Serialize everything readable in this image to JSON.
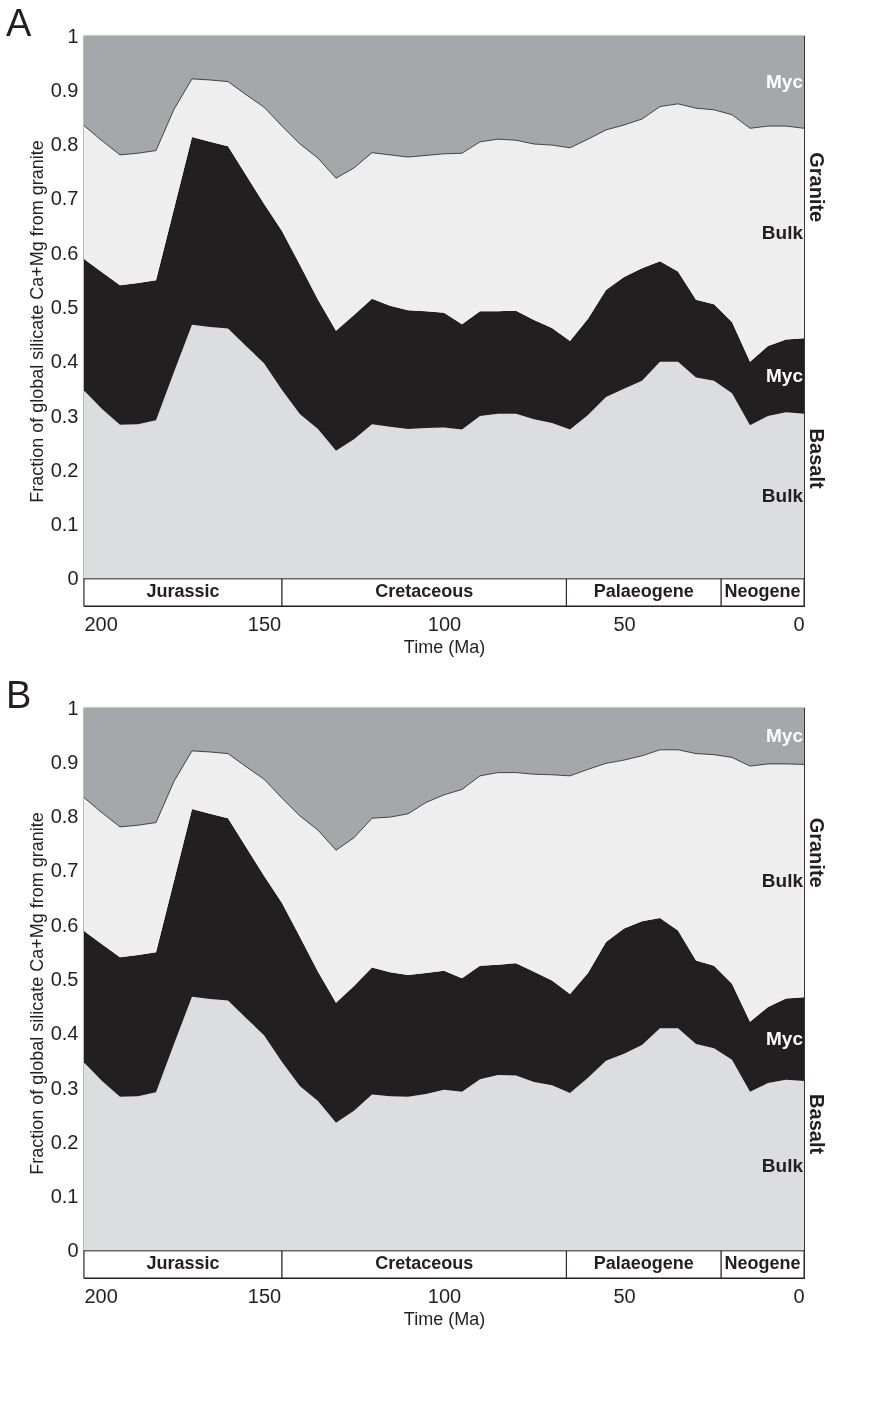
{
  "chart_data": [
    {
      "type": "area",
      "stacked": true,
      "title": "A",
      "xlabel": "Time (Ma)",
      "ylabel": "Fraction of global silicate Ca+Mg from granite",
      "x": [
        200,
        195,
        190,
        185,
        180,
        175,
        170,
        165,
        160,
        155,
        150,
        145,
        140,
        135,
        130,
        125,
        120,
        115,
        110,
        105,
        100,
        95,
        90,
        85,
        80,
        75,
        70,
        65,
        60,
        55,
        50,
        45,
        40,
        35,
        30,
        25,
        20,
        15,
        10,
        5,
        0
      ],
      "xlim": [
        200,
        0
      ],
      "xticks": [
        200,
        150,
        100,
        50,
        0
      ],
      "ylim": [
        -0.05,
        1
      ],
      "yticks": [
        0,
        0.1,
        0.2,
        0.3,
        0.4,
        0.5,
        0.6,
        0.7,
        0.8,
        0.9,
        1
      ],
      "series": [
        {
          "name": "Bulk",
          "color": "#dcdddf",
          "values": [
            0.347,
            0.313,
            0.284,
            0.285,
            0.292,
            0.381,
            0.468,
            0.464,
            0.461,
            0.429,
            0.397,
            0.348,
            0.303,
            0.276,
            0.236,
            0.257,
            0.285,
            0.28,
            0.276,
            0.278,
            0.279,
            0.275,
            0.3,
            0.304,
            0.304,
            0.294,
            0.287,
            0.275,
            0.302,
            0.335,
            0.35,
            0.365,
            0.4,
            0.4,
            0.371,
            0.365,
            0.342,
            0.283,
            0.3,
            0.307,
            0.304
          ]
        },
        {
          "name": "Myc",
          "color": "#231f20",
          "values": [
            0.242,
            0.252,
            0.257,
            0.26,
            0.258,
            0.301,
            0.346,
            0.341,
            0.336,
            0.315,
            0.294,
            0.293,
            0.275,
            0.238,
            0.221,
            0.229,
            0.231,
            0.223,
            0.219,
            0.215,
            0.211,
            0.194,
            0.193,
            0.189,
            0.19,
            0.183,
            0.175,
            0.163,
            0.177,
            0.197,
            0.206,
            0.207,
            0.185,
            0.166,
            0.143,
            0.141,
            0.131,
            0.117,
            0.129,
            0.134,
            0.139
          ]
        },
        {
          "name": "Bulk",
          "color": "#eeeeee",
          "values": [
            0.246,
            0.242,
            0.24,
            0.239,
            0.239,
            0.183,
            0.107,
            0.114,
            0.119,
            0.148,
            0.178,
            0.193,
            0.223,
            0.261,
            0.281,
            0.271,
            0.269,
            0.278,
            0.282,
            0.287,
            0.293,
            0.315,
            0.312,
            0.317,
            0.314,
            0.324,
            0.337,
            0.356,
            0.331,
            0.295,
            0.28,
            0.275,
            0.285,
            0.309,
            0.353,
            0.358,
            0.382,
            0.43,
            0.405,
            0.393,
            0.387
          ]
        },
        {
          "name": "Myc",
          "color": "#a6a7ab",
          "values": [
            0.165,
            0.193,
            0.219,
            0.216,
            0.211,
            0.135,
            0.079,
            0.081,
            0.084,
            0.108,
            0.131,
            0.166,
            0.199,
            0.225,
            0.262,
            0.243,
            0.215,
            0.219,
            0.223,
            0.22,
            0.217,
            0.216,
            0.195,
            0.19,
            0.192,
            0.199,
            0.201,
            0.206,
            0.19,
            0.173,
            0.164,
            0.153,
            0.13,
            0.125,
            0.133,
            0.136,
            0.145,
            0.17,
            0.166,
            0.166,
            0.17
          ]
        }
      ],
      "bands": [
        {
          "axis": "x",
          "from": 200,
          "to": 145,
          "label": "Jurassic",
          "color": "#ffffff"
        },
        {
          "axis": "x",
          "from": 145,
          "to": 66,
          "label": "Cretaceous",
          "color": "#ffffff"
        },
        {
          "axis": "x",
          "from": 66,
          "to": 23,
          "label": "Palaeogene",
          "color": "#ffffff"
        },
        {
          "axis": "x",
          "from": 23,
          "to": 0,
          "label": "Neogene",
          "color": "#ffffff"
        }
      ],
      "annotations": [
        "Granite",
        "Basalt"
      ]
    },
    {
      "type": "area",
      "stacked": true,
      "title": "B",
      "xlabel": "Time (Ma)",
      "ylabel": "Fraction of global silicate Ca+Mg from granite",
      "x": [
        200,
        195,
        190,
        185,
        180,
        175,
        170,
        165,
        160,
        155,
        150,
        145,
        140,
        135,
        130,
        125,
        120,
        115,
        110,
        105,
        100,
        95,
        90,
        85,
        80,
        75,
        70,
        65,
        60,
        55,
        50,
        45,
        40,
        35,
        30,
        25,
        20,
        15,
        10,
        5,
        0
      ],
      "xlim": [
        200,
        0
      ],
      "xticks": [
        200,
        150,
        100,
        50,
        0
      ],
      "ylim": [
        -0.05,
        1
      ],
      "yticks": [
        0,
        0.1,
        0.2,
        0.3,
        0.4,
        0.5,
        0.6,
        0.7,
        0.8,
        0.9,
        1
      ],
      "series": [
        {
          "name": "Bulk",
          "color": "#dcdddf",
          "values": [
            0.347,
            0.313,
            0.284,
            0.285,
            0.292,
            0.381,
            0.468,
            0.464,
            0.461,
            0.429,
            0.397,
            0.348,
            0.303,
            0.276,
            0.236,
            0.258,
            0.288,
            0.285,
            0.284,
            0.289,
            0.297,
            0.293,
            0.316,
            0.324,
            0.323,
            0.311,
            0.305,
            0.291,
            0.319,
            0.35,
            0.363,
            0.379,
            0.41,
            0.41,
            0.381,
            0.373,
            0.352,
            0.293,
            0.309,
            0.315,
            0.313
          ]
        },
        {
          "name": "Myc",
          "color": "#231f20",
          "values": [
            0.242,
            0.252,
            0.257,
            0.26,
            0.258,
            0.301,
            0.346,
            0.341,
            0.336,
            0.315,
            0.294,
            0.293,
            0.275,
            0.238,
            0.221,
            0.23,
            0.234,
            0.228,
            0.224,
            0.223,
            0.219,
            0.209,
            0.209,
            0.203,
            0.207,
            0.203,
            0.193,
            0.182,
            0.193,
            0.219,
            0.231,
            0.228,
            0.203,
            0.18,
            0.154,
            0.152,
            0.14,
            0.129,
            0.14,
            0.15,
            0.154
          ]
        },
        {
          "name": "Bulk",
          "color": "#eeeeee",
          "values": [
            0.246,
            0.242,
            0.24,
            0.239,
            0.239,
            0.183,
            0.107,
            0.114,
            0.119,
            0.148,
            0.178,
            0.193,
            0.223,
            0.261,
            0.281,
            0.273,
            0.275,
            0.286,
            0.297,
            0.314,
            0.324,
            0.348,
            0.35,
            0.354,
            0.351,
            0.364,
            0.379,
            0.402,
            0.375,
            0.329,
            0.31,
            0.305,
            0.31,
            0.333,
            0.381,
            0.389,
            0.417,
            0.471,
            0.448,
            0.432,
            0.429
          ]
        },
        {
          "name": "Myc",
          "color": "#a6a7ab",
          "values": [
            0.165,
            0.193,
            0.219,
            0.216,
            0.211,
            0.135,
            0.079,
            0.081,
            0.084,
            0.108,
            0.131,
            0.166,
            0.199,
            0.225,
            0.262,
            0.239,
            0.203,
            0.201,
            0.195,
            0.174,
            0.16,
            0.15,
            0.125,
            0.119,
            0.119,
            0.122,
            0.123,
            0.125,
            0.113,
            0.102,
            0.096,
            0.088,
            0.077,
            0.077,
            0.084,
            0.086,
            0.091,
            0.107,
            0.103,
            0.103,
            0.104
          ]
        }
      ],
      "bands": [
        {
          "axis": "x",
          "from": 200,
          "to": 145,
          "label": "Jurassic",
          "color": "#ffffff"
        },
        {
          "axis": "x",
          "from": 145,
          "to": 66,
          "label": "Cretaceous",
          "color": "#ffffff"
        },
        {
          "axis": "x",
          "from": 66,
          "to": 23,
          "label": "Palaeogene",
          "color": "#ffffff"
        },
        {
          "axis": "x",
          "from": 23,
          "to": 0,
          "label": "Neogene",
          "color": "#ffffff"
        }
      ],
      "annotations": [
        "Granite",
        "Basalt"
      ]
    }
  ]
}
